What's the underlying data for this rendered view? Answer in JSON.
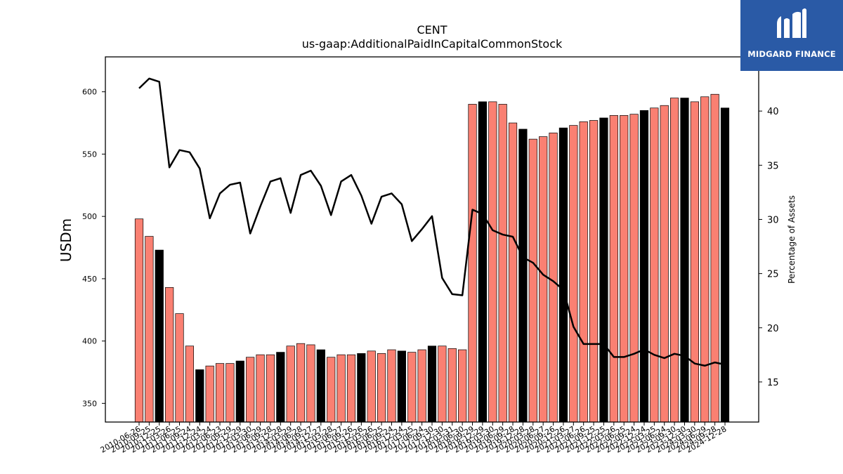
{
  "chart_data": {
    "type": "bar",
    "title": "CENT",
    "subtitle": "us-gaap:AdditionalPaidInCapitalCommonStock",
    "ylabel": "USDm",
    "y2label": "Percentage of Assets",
    "ylim": [
      335,
      628
    ],
    "y2lim": [
      11.3,
      45.0
    ],
    "yticks": [
      350,
      400,
      450,
      500,
      550,
      600
    ],
    "y2ticks": [
      15,
      20,
      25,
      30,
      35,
      40
    ],
    "grid": false,
    "colors": {
      "bar": "#fa8072",
      "bar_highlight": "#000000",
      "line": "#000000"
    },
    "categories": [
      "2010-06-26",
      "2010-09-25",
      "2010-12-25",
      "2011-03-26",
      "2011-06-25",
      "2011-09-24",
      "2011-12-24",
      "2012-03-24",
      "2012-06-23",
      "2012-09-29",
      "2012-12-29",
      "2013-03-30",
      "2013-06-29",
      "2013-09-28",
      "2013-12-28",
      "2014-03-29",
      "2014-06-28",
      "2014-09-27",
      "2014-12-27",
      "2015-03-28",
      "2015-06-27",
      "2015-09-26",
      "2015-12-26",
      "2016-03-26",
      "2016-06-25",
      "2016-09-24",
      "2016-12-24",
      "2017-03-25",
      "2017-06-24",
      "2017-09-30",
      "2017-12-30",
      "2018-03-31",
      "2018-06-30",
      "2018-09-29",
      "2018-12-29",
      "2019-03-30",
      "2019-06-29",
      "2019-09-28",
      "2019-12-28",
      "2020-03-28",
      "2020-06-27",
      "2020-09-26",
      "2020-12-26",
      "2021-03-27",
      "2021-06-26",
      "2021-09-25",
      "2021-12-25",
      "2022-03-26",
      "2022-06-25",
      "2022-09-24",
      "2022-12-24",
      "2023-03-25",
      "2023-06-24",
      "2023-09-30",
      "2023-12-30",
      "2024-03-30",
      "2024-06-29",
      "2024-09-28",
      "2024-12-28"
    ],
    "series": [
      {
        "kind": "bar",
        "values": [
          498,
          484,
          473,
          443,
          422,
          396,
          377,
          380,
          382,
          382,
          384,
          387,
          389,
          389,
          391,
          396,
          398,
          397,
          393,
          387,
          389,
          389,
          390,
          392,
          390,
          393,
          392,
          391,
          393,
          396,
          396,
          394,
          393,
          590,
          592,
          592,
          590,
          575,
          570,
          562,
          564,
          567,
          571,
          573,
          576,
          577,
          579,
          581,
          581,
          582,
          585,
          587,
          589,
          595,
          595,
          592,
          596,
          598,
          587
        ],
        "highlight": [
          false,
          false,
          true,
          false,
          false,
          false,
          true,
          false,
          false,
          false,
          true,
          false,
          false,
          false,
          true,
          false,
          false,
          false,
          true,
          false,
          false,
          false,
          true,
          false,
          false,
          false,
          true,
          false,
          false,
          true,
          false,
          false,
          false,
          false,
          true,
          false,
          false,
          false,
          true,
          false,
          false,
          false,
          true,
          false,
          false,
          false,
          true,
          false,
          false,
          false,
          true,
          false,
          false,
          false,
          true,
          false,
          false,
          false,
          true
        ]
      },
      {
        "kind": "line",
        "axis": "right",
        "values": [
          42.1,
          43.0,
          42.7,
          34.8,
          36.4,
          36.2,
          34.7,
          30.1,
          32.4,
          33.2,
          33.4,
          28.7,
          31.2,
          33.5,
          33.8,
          30.6,
          34.1,
          34.5,
          33.1,
          30.4,
          33.5,
          34.1,
          32.2,
          29.6,
          32.1,
          32.4,
          31.4,
          28.0,
          29.1,
          30.3,
          24.6,
          23.1,
          23.0,
          30.9,
          30.5,
          29.0,
          28.6,
          28.4,
          26.5,
          26.0,
          24.9,
          24.3,
          23.5,
          20.1,
          18.5,
          18.5,
          18.5,
          17.3,
          17.3,
          17.6,
          18.0,
          17.5,
          17.2,
          17.6,
          17.4,
          16.7,
          16.5,
          16.8,
          16.6
        ]
      }
    ]
  },
  "brand": {
    "name": "MIDGARD FINANCE"
  }
}
